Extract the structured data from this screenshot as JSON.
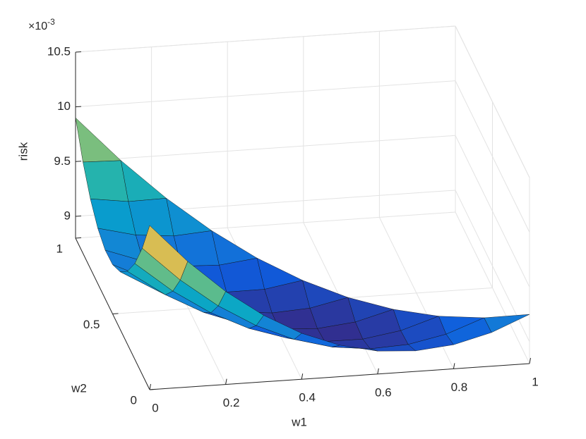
{
  "chart_data": {
    "type": "surface",
    "xlabel": "w1",
    "ylabel": "w2",
    "zlabel": "risk",
    "z_multiplier": {
      "base": "×10",
      "exponent": "-3"
    },
    "x": [
      0,
      0.1,
      0.2,
      0.3,
      0.4,
      0.5,
      0.6,
      0.7,
      0.8,
      0.9,
      1
    ],
    "y": [
      0,
      0.1,
      0.2,
      0.3,
      0.4,
      0.5,
      0.6,
      0.7,
      0.8,
      0.9,
      1
    ],
    "z": [
      [
        10.3,
        9.948,
        9.65,
        9.408,
        9.22,
        9.088,
        9.01,
        8.988,
        9.02,
        9.108,
        9.25
      ],
      [
        9.954,
        9.64,
        9.38,
        9.176,
        9.026,
        8.932,
        8.892,
        8.908,
        8.978,
        9.104,
        null
      ],
      [
        9.676,
        9.4,
        9.178,
        9.012,
        8.9,
        8.844,
        8.842,
        8.896,
        9.004,
        null,
        null
      ],
      [
        9.466,
        9.228,
        9.044,
        8.916,
        8.842,
        8.824,
        8.86,
        8.952,
        null,
        null,
        null
      ],
      [
        9.324,
        9.124,
        8.978,
        8.888,
        8.852,
        8.872,
        8.946,
        null,
        null,
        null,
        null
      ],
      [
        9.25,
        9.088,
        8.98,
        8.928,
        8.93,
        8.988,
        null,
        null,
        null,
        null,
        null
      ],
      [
        9.244,
        9.12,
        9.05,
        9.036,
        9.076,
        null,
        null,
        null,
        null,
        null,
        null
      ],
      [
        9.306,
        9.22,
        9.188,
        9.212,
        null,
        null,
        null,
        null,
        null,
        null,
        null
      ],
      [
        9.436,
        9.388,
        9.394,
        null,
        null,
        null,
        null,
        null,
        null,
        null,
        null
      ],
      [
        9.634,
        9.624,
        null,
        null,
        null,
        null,
        null,
        null,
        null,
        null,
        null
      ],
      [
        9.9,
        null,
        null,
        null,
        null,
        null,
        null,
        null,
        null,
        null,
        null
      ]
    ],
    "xlim": [
      0,
      1
    ],
    "ylim": [
      0,
      1
    ],
    "zlim": [
      8.8,
      10.5
    ],
    "xticks": [
      0,
      0.2,
      0.4,
      0.6,
      0.8,
      1
    ],
    "yticks": [
      0,
      0.5,
      1
    ],
    "zticks": [
      9,
      9.5,
      10,
      10.5
    ],
    "grid": true,
    "colormap": [
      "#352a87",
      "#0f5cdd",
      "#1481d6",
      "#06a4ca",
      "#2eb7a4",
      "#87bf77",
      "#d1bb59",
      "#fec832",
      "#f9fb0e"
    ]
  }
}
